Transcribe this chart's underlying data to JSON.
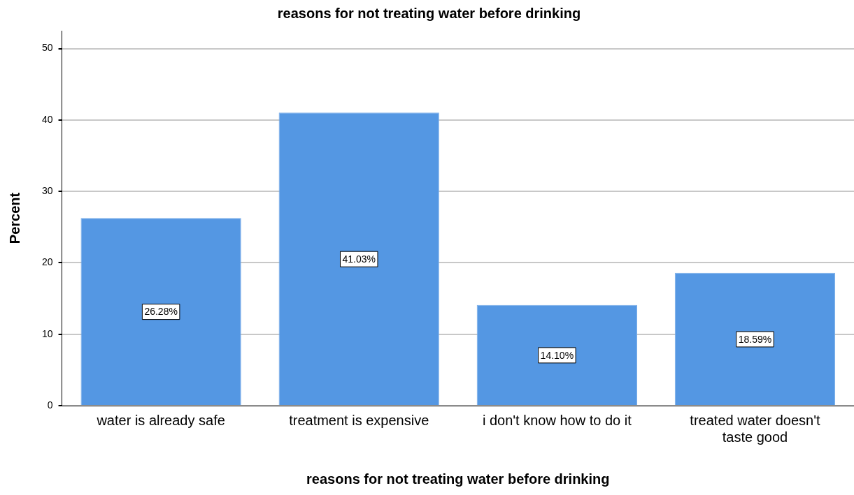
{
  "chart_data": {
    "type": "bar",
    "title": "reasons for not treating water before drinking",
    "xlabel": "reasons for not treating water before drinking",
    "ylabel": "Percent",
    "categories": [
      "water is already safe",
      "treatment is expensive",
      "i don't know how to do it",
      "treated water doesn't taste good"
    ],
    "values": [
      26.28,
      41.03,
      14.1,
      18.59
    ],
    "value_labels": [
      "26.28%",
      "41.03%",
      "14.10%",
      "18.59%"
    ],
    "color": "#5497e3",
    "ylim": [
      0,
      52.5
    ],
    "yticks": [
      0,
      10,
      20,
      30,
      40,
      50
    ],
    "grid": "y",
    "legend": false
  }
}
